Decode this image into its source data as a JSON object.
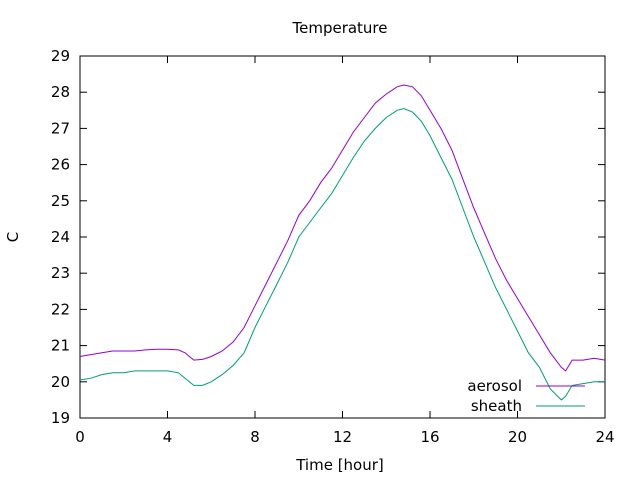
{
  "chart_data": {
    "type": "line",
    "title": "Temperature",
    "xlabel": "Time [hour]",
    "ylabel": "C",
    "xlim": [
      0,
      24
    ],
    "ylim": [
      19,
      29
    ],
    "xticks": [
      0,
      4,
      8,
      12,
      16,
      20,
      24
    ],
    "yticks": [
      19,
      20,
      21,
      22,
      23,
      24,
      25,
      26,
      27,
      28,
      29
    ],
    "grid": false,
    "legend_position": "bottom-right",
    "series": [
      {
        "name": "aerosol",
        "color": "#9400d3",
        "x": [
          0,
          0.5,
          1,
          1.5,
          2,
          2.5,
          3,
          3.5,
          4,
          4.5,
          4.8,
          5.2,
          5.6,
          6,
          6.5,
          7,
          7.5,
          8,
          8.5,
          9,
          9.5,
          10,
          10.5,
          11,
          11.5,
          12,
          12.5,
          13,
          13.5,
          14,
          14.5,
          14.8,
          15.2,
          15.6,
          16,
          16.5,
          17,
          17.5,
          18,
          18.5,
          19,
          19.5,
          20,
          20.5,
          21,
          21.5,
          22,
          22.2,
          22.5,
          23,
          23.5,
          24
        ],
        "y": [
          20.7,
          20.75,
          20.8,
          20.85,
          20.85,
          20.85,
          20.88,
          20.9,
          20.9,
          20.88,
          20.8,
          20.6,
          20.62,
          20.7,
          20.85,
          21.1,
          21.5,
          22.1,
          22.7,
          23.3,
          23.9,
          24.6,
          25.0,
          25.5,
          25.9,
          26.4,
          26.9,
          27.3,
          27.7,
          27.95,
          28.15,
          28.2,
          28.15,
          27.9,
          27.5,
          27.0,
          26.4,
          25.6,
          24.8,
          24.1,
          23.4,
          22.8,
          22.3,
          21.8,
          21.3,
          20.8,
          20.4,
          20.3,
          20.6,
          20.6,
          20.65,
          20.6
        ]
      },
      {
        "name": "sheath",
        "color": "#009e73",
        "x": [
          0,
          0.5,
          1,
          1.5,
          2,
          2.5,
          3,
          3.5,
          4,
          4.5,
          4.8,
          5.2,
          5.6,
          6,
          6.5,
          7,
          7.5,
          8,
          8.5,
          9,
          9.5,
          10,
          10.5,
          11,
          11.5,
          12,
          12.5,
          13,
          13.5,
          14,
          14.5,
          14.8,
          15.2,
          15.6,
          16,
          16.5,
          17,
          17.5,
          18,
          18.5,
          19,
          19.5,
          20,
          20.5,
          21,
          21.5,
          22,
          22.2,
          22.5,
          23,
          23.5,
          24
        ],
        "y": [
          20.05,
          20.1,
          20.2,
          20.25,
          20.25,
          20.3,
          20.3,
          20.3,
          20.3,
          20.25,
          20.1,
          19.9,
          19.9,
          20.0,
          20.2,
          20.45,
          20.8,
          21.5,
          22.1,
          22.7,
          23.3,
          24.0,
          24.4,
          24.8,
          25.2,
          25.7,
          26.2,
          26.65,
          27.0,
          27.3,
          27.5,
          27.55,
          27.45,
          27.2,
          26.8,
          26.2,
          25.6,
          24.8,
          24.0,
          23.3,
          22.6,
          22.0,
          21.4,
          20.8,
          20.4,
          19.8,
          19.5,
          19.6,
          19.9,
          19.95,
          20.0,
          20.0
        ]
      }
    ]
  }
}
